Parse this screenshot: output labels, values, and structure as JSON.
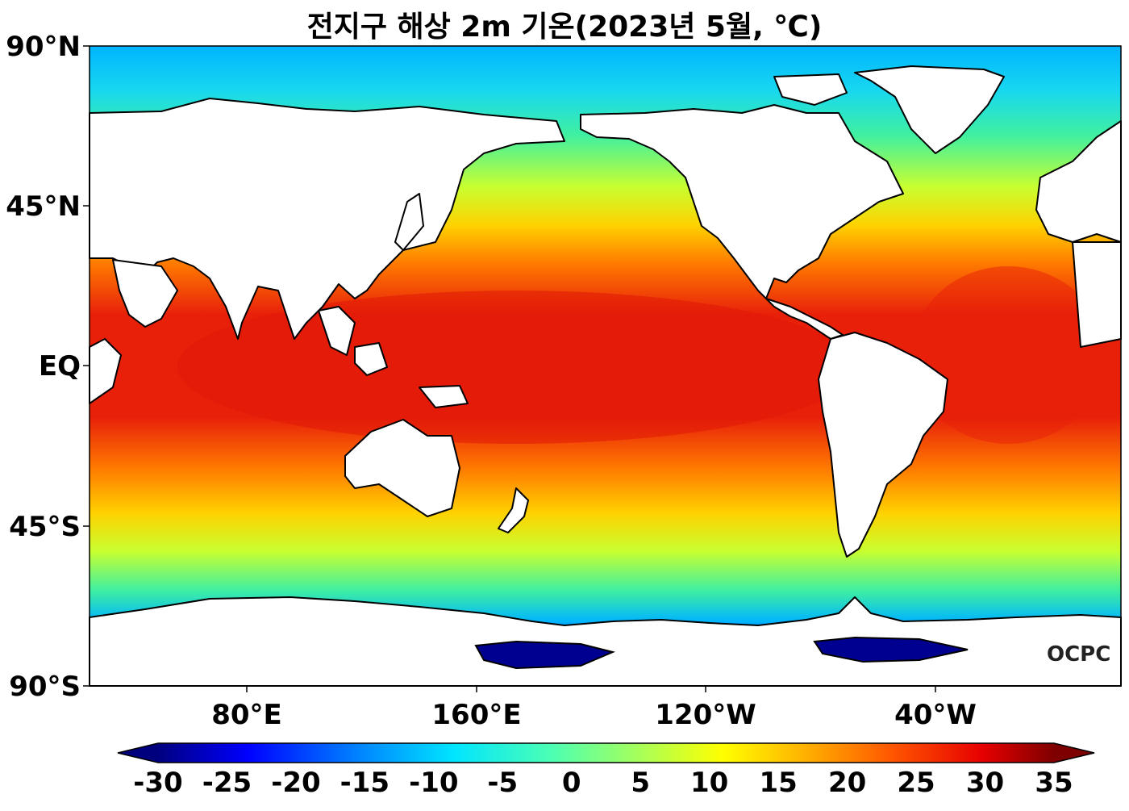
{
  "title": "전지구 해상 2m 기온(2023년 5월, ℃)",
  "y_ticks": [
    "90°N",
    "45°N",
    "EQ",
    "45°S",
    "90°S"
  ],
  "x_ticks": [
    "80°E",
    "160°E",
    "120°W",
    "40°W"
  ],
  "colorbar": {
    "ticks": [
      "-30",
      "-25",
      "-20",
      "-15",
      "-10",
      "-5",
      "0",
      "5",
      "10",
      "15",
      "20",
      "25",
      "30",
      "35"
    ],
    "min": -30,
    "max": 35,
    "colors": [
      "#00007f",
      "#0000ff",
      "#0080ff",
      "#00e5ff",
      "#4dffb3",
      "#b3ff4d",
      "#ffff00",
      "#ffb300",
      "#ff5500",
      "#e60000",
      "#7f0000"
    ]
  },
  "map_colors": {
    "land": "#ffffff",
    "tropics": "#e8200a",
    "subtropics": "#ff7a00",
    "midlat": "#ffd200",
    "temperate": "#c8ff30",
    "cool": "#40f0a0",
    "subpolar": "#00b4ff",
    "antarctic_coast": "#0030e0",
    "ross_sea": "#000090"
  },
  "logo": "OCPC"
}
